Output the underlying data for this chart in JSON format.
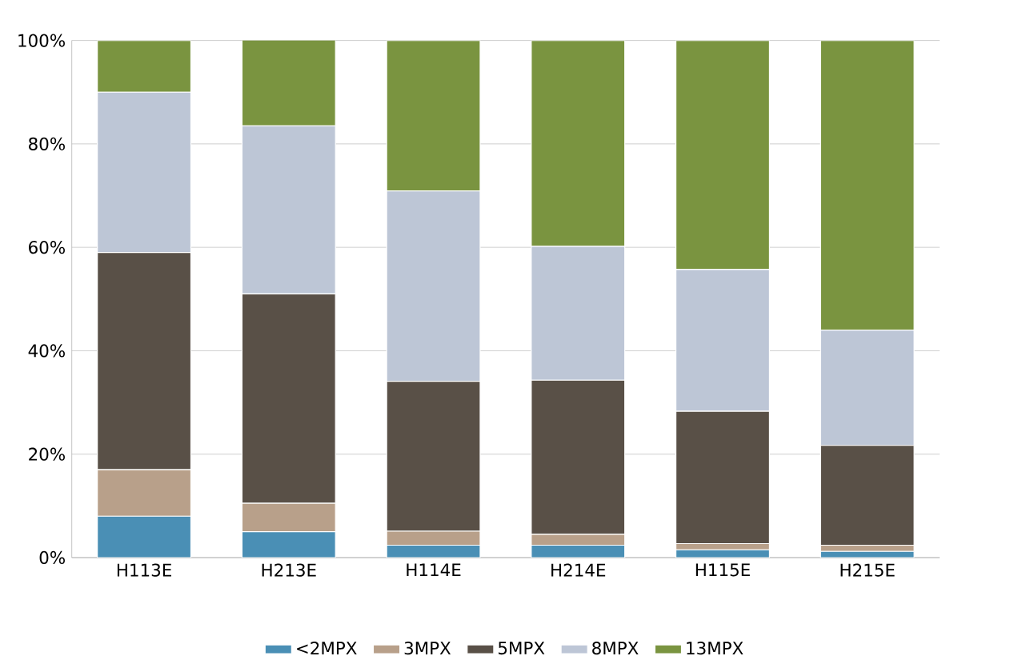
{
  "chart_data": {
    "type": "bar",
    "stacked": true,
    "categories": [
      "H113E",
      "H213E",
      "H114E",
      "H214E",
      "H115E",
      "H215E"
    ],
    "series": [
      {
        "name": "<2MPX",
        "color": "#4a8fb5",
        "values": [
          8,
          5,
          2.4,
          2.4,
          1.5,
          1.2
        ]
      },
      {
        "name": "3MPX",
        "color": "#b8a08a",
        "values": [
          9,
          5.5,
          2.7,
          2.1,
          1.2,
          1.2
        ]
      },
      {
        "name": "5MPX",
        "color": "#595047",
        "values": [
          42,
          40.5,
          29,
          29.8,
          25.6,
          19.3
        ]
      },
      {
        "name": "8MPX",
        "color": "#bdc6d6",
        "values": [
          31,
          32.5,
          36.8,
          25.9,
          27.4,
          22.3
        ]
      },
      {
        "name": "13MPX",
        "color": "#7a9440",
        "values": [
          10,
          16.6,
          29.1,
          39.8,
          44.3,
          56
        ]
      }
    ],
    "ylim": [
      0,
      100
    ],
    "yticks": [
      {
        "value": 0,
        "label": "0%"
      },
      {
        "value": 20,
        "label": "20%"
      },
      {
        "value": 40,
        "label": "40%"
      },
      {
        "value": 60,
        "label": "60%"
      },
      {
        "value": 80,
        "label": "80%"
      },
      {
        "value": 100,
        "label": "100%"
      }
    ],
    "grid": "y",
    "legend": "bottom"
  }
}
